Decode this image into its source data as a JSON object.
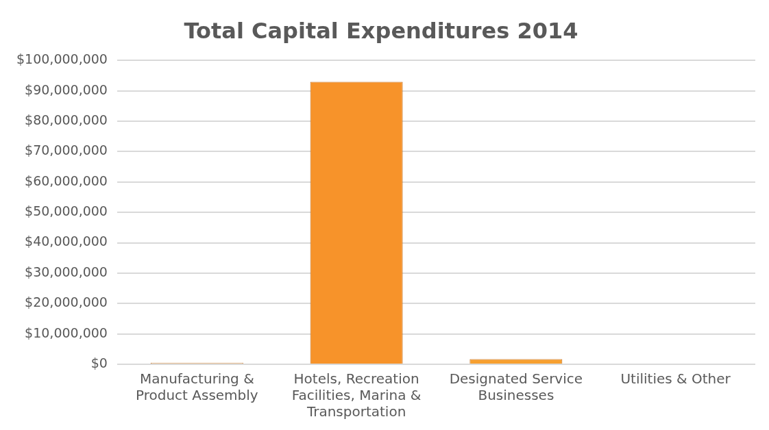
{
  "chart_data": {
    "type": "bar",
    "title": "Total Capital Expenditures 2014",
    "categories": [
      "Manufacturing & Product Assembly",
      "Hotels, Recreation Facilities, Marina & Transportation",
      "Designated Service Businesses",
      "Utilities & Other"
    ],
    "values": [
      500000,
      93000000,
      1700000,
      0
    ],
    "colors": [
      "#f2c9a0",
      "#f7932a",
      "#f7a030",
      "#f7932a"
    ],
    "ylim": [
      0,
      100000000
    ],
    "yticks": [
      {
        "value": 0,
        "label": "$0"
      },
      {
        "value": 10000000,
        "label": "$10,000,000"
      },
      {
        "value": 20000000,
        "label": "$20,000,000"
      },
      {
        "value": 30000000,
        "label": "$30,000,000"
      },
      {
        "value": 40000000,
        "label": "$40,000,000"
      },
      {
        "value": 50000000,
        "label": "$50,000,000"
      },
      {
        "value": 60000000,
        "label": "$60,000,000"
      },
      {
        "value": 70000000,
        "label": "$70,000,000"
      },
      {
        "value": 80000000,
        "label": "$80,000,000"
      },
      {
        "value": 90000000,
        "label": "$90,000,000"
      },
      {
        "value": 100000000,
        "label": "$100,000,000"
      }
    ],
    "grid": "y",
    "legend": false
  }
}
